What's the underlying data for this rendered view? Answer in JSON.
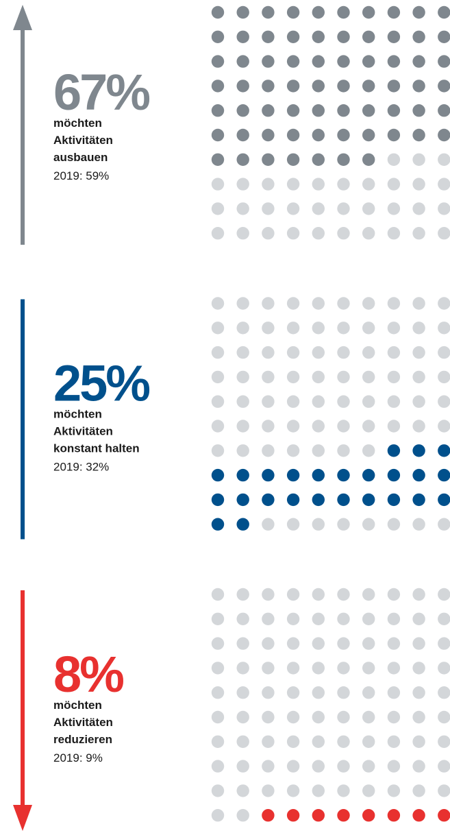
{
  "chart_data": [
    {
      "type": "waffle",
      "values": [
        67
      ],
      "value_labels": [
        "67%"
      ],
      "color": "#7f878e",
      "arrow": "up",
      "label_lines": [
        "möchten",
        "Aktivitäten",
        "ausbauen"
      ],
      "note": "2019: 59%"
    },
    {
      "type": "waffle",
      "values": [
        25
      ],
      "value_labels": [
        "25%"
      ],
      "color": "#00508c",
      "arrow": "none",
      "label_lines": [
        "möchten",
        "Aktivitäten",
        "konstant halten"
      ],
      "note": "2019: 32%"
    },
    {
      "type": "waffle",
      "values": [
        8
      ],
      "value_labels": [
        "8%"
      ],
      "color": "#e8312f",
      "arrow": "down",
      "label_lines": [
        "möchten",
        "Aktivitäten",
        "reduzieren"
      ],
      "note": "2019: 9%"
    }
  ]
}
